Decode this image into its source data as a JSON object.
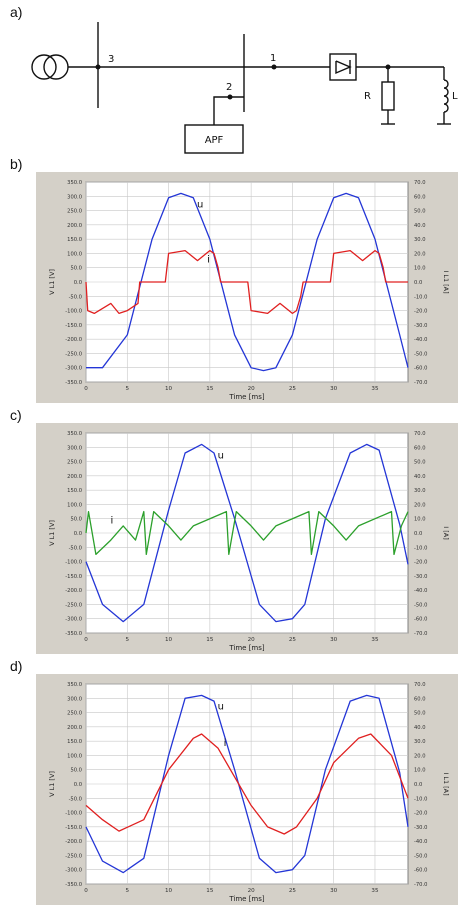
{
  "labels": {
    "a": "a)",
    "b": "b)",
    "c": "c)",
    "d": "d)"
  },
  "circuit": {
    "node1": "1",
    "node2": "2",
    "node3": "3",
    "apf": "APF",
    "r": "R",
    "l": "L"
  },
  "y_left_ticks": [
    "350.0",
    "300.0",
    "250.0",
    "200.0",
    "150.0",
    "100.0",
    "50.0",
    "0.0",
    "-50.0",
    "-100.0",
    "-150.0",
    "-200.0",
    "-250.0",
    "-300.0",
    "-350.0"
  ],
  "y_right_ticks": [
    "70.0",
    "60.0",
    "50.0",
    "40.0",
    "30.0",
    "20.0",
    "10.0",
    "0.0",
    "-10.0",
    "-20.0",
    "-30.0",
    "-40.0",
    "-50.0",
    "-60.0",
    "-70.0"
  ],
  "x_ticks": [
    "0",
    "5",
    "10",
    "15",
    "20",
    "25",
    "30",
    "35"
  ],
  "chart_data": [
    {
      "type": "line",
      "panel": "b)",
      "xlabel": "Time [ms]",
      "ylabel": "V L1 [V]",
      "y2label": "I L1 [A]",
      "xlim": [
        0,
        39
      ],
      "ylim": [
        -350,
        350
      ],
      "y2lim": [
        -70,
        70
      ],
      "series": [
        {
          "name": "u",
          "axis": "left",
          "color": "#2436d6",
          "x": [
            0,
            2,
            5,
            8,
            10,
            11.5,
            13,
            15,
            18,
            20,
            21.5,
            23,
            25,
            28,
            30,
            31.5,
            33,
            35,
            38,
            39
          ],
          "y": [
            -300,
            -300,
            -185,
            150,
            295,
            310,
            295,
            150,
            -185,
            -300,
            -310,
            -300,
            -185,
            150,
            295,
            310,
            295,
            150,
            -185,
            -300
          ]
        },
        {
          "name": "i",
          "axis": "right",
          "color": "#e02020",
          "x": [
            0,
            0.2,
            1,
            3,
            4,
            5,
            6.3,
            6.5,
            9.6,
            10,
            12,
            13.5,
            15,
            15.5,
            16,
            16.3,
            16.5,
            19.6,
            20,
            22,
            23.5,
            25,
            25.5,
            26,
            26.3,
            26.5,
            29.6,
            30,
            32,
            33.5,
            35,
            35.5,
            36,
            36.3,
            36.5,
            39
          ],
          "y": [
            0,
            -20,
            -22,
            -15,
            -22,
            -20,
            -15,
            0,
            0,
            20,
            22,
            15,
            22,
            20,
            10,
            0,
            0,
            0,
            -20,
            -22,
            -15,
            -22,
            -20,
            -10,
            0,
            0,
            0,
            20,
            22,
            15,
            22,
            20,
            10,
            0,
            0,
            0
          ]
        }
      ]
    },
    {
      "type": "line",
      "panel": "c)",
      "xlabel": "Time [ms]",
      "ylabel": "V L1 [V]",
      "y2label": "I [A]",
      "xlim": [
        0,
        39
      ],
      "ylim": [
        -350,
        350
      ],
      "y2lim": [
        -70,
        70
      ],
      "series": [
        {
          "name": "u",
          "axis": "left",
          "color": "#2436d6",
          "x": [
            0,
            2,
            4.5,
            7,
            10,
            12,
            14,
            15.5,
            18,
            21,
            23,
            25,
            26.5,
            29,
            32,
            34,
            35.5,
            38,
            39
          ],
          "y": [
            -100,
            -250,
            -310,
            -250,
            80,
            280,
            310,
            280,
            50,
            -250,
            -310,
            -300,
            -250,
            50,
            280,
            310,
            290,
            30,
            -110
          ]
        },
        {
          "name": "i",
          "axis": "right",
          "color": "#2ca02c",
          "x": [
            0,
            0.3,
            1.2,
            3,
            4.5,
            6,
            7,
            7.3,
            8.2,
            10,
            11.5,
            13,
            17,
            17.3,
            18.2,
            20,
            21.5,
            23,
            27,
            27.3,
            28.2,
            30,
            31.5,
            33,
            37,
            37.3,
            38.2,
            39
          ],
          "y": [
            0,
            15,
            -15,
            -5,
            5,
            -5,
            15,
            -15,
            15,
            5,
            -5,
            5,
            15,
            -15,
            15,
            5,
            -5,
            5,
            15,
            -15,
            15,
            5,
            -5,
            5,
            15,
            -15,
            5,
            15
          ]
        }
      ]
    },
    {
      "type": "line",
      "panel": "d)",
      "xlabel": "Time [ms]",
      "ylabel": "V L1 [V]",
      "y2label": "I L1 [A]",
      "xlim": [
        0,
        39
      ],
      "ylim": [
        -350,
        350
      ],
      "y2lim": [
        -70,
        70
      ],
      "series": [
        {
          "name": "u",
          "axis": "left",
          "color": "#2436d6",
          "x": [
            0,
            2,
            4.5,
            7,
            10,
            12,
            14,
            15.5,
            18,
            21,
            23,
            25,
            26.5,
            29,
            32,
            34,
            35.5,
            38,
            39
          ],
          "y": [
            -150,
            -270,
            -310,
            -260,
            100,
            300,
            310,
            290,
            50,
            -260,
            -310,
            -300,
            -250,
            50,
            290,
            310,
            300,
            40,
            -150
          ]
        },
        {
          "name": "i",
          "axis": "right",
          "color": "#e02020",
          "x": [
            0,
            2,
            4,
            7,
            10,
            13,
            14,
            16,
            18,
            20,
            22,
            24,
            25.5,
            28,
            30,
            33,
            34.5,
            37,
            39
          ],
          "y": [
            -15,
            -25,
            -33,
            -25,
            10,
            32,
            35,
            25,
            5,
            -15,
            -30,
            -35,
            -30,
            -10,
            15,
            32,
            35,
            20,
            -10
          ]
        }
      ]
    }
  ]
}
